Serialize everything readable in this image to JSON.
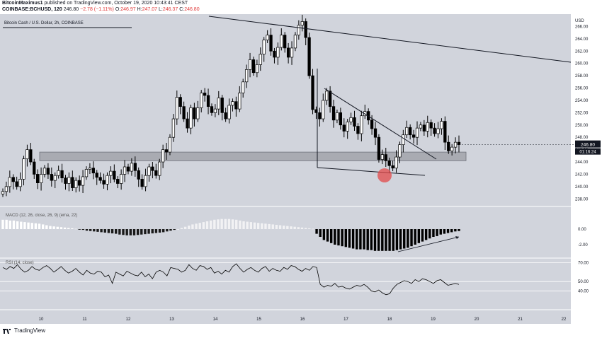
{
  "header": {
    "author": "BitcoinMaximus1",
    "published_text": "published on TradingView.com, October 19, 2020 10:43:41 CEST",
    "symbol": "COINBASE:BCHUSD, 120",
    "last": "246.80",
    "change": "−2.78 (−1.11%)",
    "o_label": "O:",
    "o_val": "246.97",
    "h_label": "H:",
    "h_val": "247.07",
    "l_label": "L:",
    "l_val": "246.37",
    "c_label": "C:",
    "c_val": "246.80"
  },
  "pane_title": "Bitcoin Cash / U.S. Dollar, 2h, COINBASE",
  "macd_label": "MACD (12, 26, close, 26, 9) (ema, 22)",
  "rsi_label": "RSI (14, close)",
  "price_tag": "246.80",
  "countdown_tag": "01:16:24",
  "footer_brand": "TradingView",
  "currency": "USD",
  "colors": {
    "background": "#d1d4dc",
    "candle": "#000000",
    "candle_up": "#ffffff",
    "support_band": "#a8abb2",
    "highlight": "#e24a4a",
    "text": "#131722"
  },
  "chart_data": {
    "type": "candlestick",
    "title": "Bitcoin Cash / U.S. Dollar, 2h, COINBASE",
    "x_ticks": [
      "10",
      "11",
      "12",
      "13",
      "14",
      "15",
      "16",
      "17",
      "18",
      "19",
      "20",
      "21",
      "22"
    ],
    "price_axis": {
      "ticks": [
        "266.00",
        "264.00",
        "262.00",
        "260.00",
        "258.00",
        "256.00",
        "254.00",
        "252.00",
        "250.00",
        "248.00",
        "246.00",
        "244.00",
        "242.00",
        "240.00",
        "238.00"
      ],
      "ylim": [
        237,
        268
      ]
    },
    "macd_axis": {
      "ticks": [
        "0.00",
        "-2.00"
      ]
    },
    "rsi_axis": {
      "ticks": [
        "70.00",
        "50.00",
        "40.00"
      ],
      "ylim": [
        20,
        75
      ]
    },
    "support_zone": [
      244.2,
      245.6
    ],
    "closes": [
      239.2,
      240.0,
      241.5,
      240.8,
      240.0,
      241.2,
      244.5,
      246.0,
      244.0,
      242.0,
      240.6,
      242.0,
      243.0,
      242.0,
      241.0,
      241.8,
      242.6,
      241.4,
      240.5,
      241.5,
      239.8,
      241.0,
      240.2,
      241.6,
      242.8,
      243.0,
      242.2,
      241.5,
      241.0,
      240.4,
      241.8,
      242.5,
      241.2,
      240.5,
      242.0,
      243.2,
      242.5,
      243.8,
      242.6,
      241.2,
      240.0,
      241.8,
      243.2,
      242.6,
      241.8,
      244.0,
      246.0,
      245.6,
      248.0,
      251.0,
      254.5,
      253.0,
      251.0,
      249.5,
      252.8,
      251.0,
      252.8,
      255.2,
      254.8,
      253.0,
      252.0,
      252.6,
      254.4,
      252.0,
      251.0,
      253.2,
      253.8,
      252.6,
      255.2,
      257.0,
      259.0,
      260.6,
      258.5,
      259.8,
      261.5,
      263.8,
      264.6,
      262.0,
      261.0,
      262.6,
      264.6,
      262.5,
      261.0,
      262.5,
      264.6,
      266.2,
      266.8,
      264.2,
      258.0,
      252.5,
      252.0,
      251.0,
      254.0,
      255.5,
      253.0,
      250.8,
      252.0,
      250.0,
      249.0,
      250.5,
      251.2,
      249.8,
      248.6,
      251.5,
      252.2,
      250.8,
      249.4,
      248.0,
      244.4,
      245.2,
      244.2,
      243.4,
      243.0,
      244.8,
      246.8,
      248.4,
      249.6,
      248.4,
      248.0,
      249.5,
      250.0,
      249.0,
      250.4,
      249.5,
      248.6,
      249.4,
      250.6,
      247.2,
      245.8,
      246.4,
      247.2,
      246.8
    ],
    "rsi_values": [
      65,
      63,
      66,
      64,
      68,
      63,
      60,
      62,
      66,
      63,
      62,
      65,
      67,
      64,
      60,
      63,
      66,
      62,
      59,
      61,
      64,
      60,
      57,
      62,
      59,
      58,
      61,
      60,
      55,
      57,
      48,
      60,
      58,
      56,
      61,
      59,
      57,
      56,
      60,
      55,
      58,
      53,
      60,
      62,
      60,
      56,
      65,
      64,
      63,
      60,
      62,
      68,
      64,
      62,
      67,
      66,
      63,
      65,
      59,
      61,
      58,
      62,
      60,
      66,
      69,
      64,
      60,
      63,
      65,
      62,
      60,
      64,
      66,
      61,
      64,
      62,
      61,
      65,
      63,
      67,
      66,
      63,
      61,
      64,
      62,
      66,
      65,
      47,
      44,
      46,
      45,
      48,
      44,
      45,
      43,
      42,
      44,
      46,
      45,
      47,
      44,
      40,
      39,
      41,
      38,
      36,
      37,
      43,
      47,
      49,
      51,
      50,
      48,
      52,
      50,
      53,
      52,
      50,
      48,
      51,
      52,
      49,
      46,
      47,
      48,
      47
    ],
    "macd_hist": [
      1.2,
      1.2,
      1.1,
      1.1,
      1.0,
      0.95,
      0.9,
      0.85,
      0.8,
      0.75,
      0.7,
      0.6,
      0.5,
      0.4,
      0.35,
      0.3,
      0.25,
      0.2,
      0.15,
      0.1,
      0.05,
      -0.05,
      -0.1,
      -0.2,
      -0.25,
      -0.3,
      -0.35,
      -0.4,
      -0.45,
      -0.5,
      -0.55,
      -0.6,
      -0.7,
      -0.75,
      -0.8,
      -0.8,
      -0.8,
      -0.75,
      -0.7,
      -0.65,
      -0.6,
      -0.55,
      -0.5,
      -0.45,
      -0.4,
      -0.3,
      -0.2,
      -0.1,
      0.0,
      0.15,
      0.3,
      0.45,
      0.6,
      0.7,
      0.8,
      0.9,
      1.0,
      1.1,
      1.2,
      1.25,
      1.3,
      1.3,
      1.3,
      1.25,
      1.2,
      1.1,
      1.0,
      0.95,
      0.9,
      0.85,
      0.8,
      0.75,
      0.7,
      0.65,
      0.6,
      0.55,
      0.5,
      0.45,
      0.4,
      0.35,
      0.3,
      0.25,
      0.2,
      0.15,
      0.1,
      0.05,
      -0.6,
      -1.0,
      -1.4,
      -1.6,
      -1.8,
      -2.0,
      -2.1,
      -2.2,
      -2.3,
      -2.4,
      -2.5,
      -2.6,
      -2.6,
      -2.6,
      -2.7,
      -2.7,
      -2.8,
      -2.8,
      -2.8,
      -2.8,
      -2.8,
      -2.8,
      -2.7,
      -2.6,
      -2.5,
      -2.4,
      -2.2,
      -2.0,
      -1.8,
      -1.6,
      -1.4,
      -1.2,
      -1.0,
      -0.9,
      -0.7,
      -0.6,
      -0.5,
      -0.4,
      -0.3,
      -0.25
    ]
  }
}
